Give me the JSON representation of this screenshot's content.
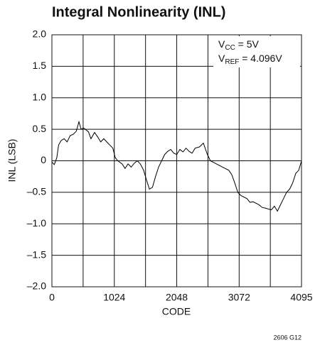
{
  "chart_data": {
    "type": "line",
    "title": "Integral Nonlinearity (INL)",
    "xlabel": "CODE",
    "ylabel": "INL (LSB)",
    "annotations": [
      {
        "parts": [
          "V",
          "CC",
          " = 5V"
        ]
      },
      {
        "parts": [
          "V",
          "REF",
          " = 4.096V"
        ]
      }
    ],
    "footnote": "2606 G12",
    "xlim": [
      0,
      4095
    ],
    "xticks": [
      0,
      1024,
      2048,
      3072,
      4095
    ],
    "ylim": [
      -2,
      2
    ],
    "yticks": [
      {
        "value": -2,
        "label": "–2.0"
      },
      {
        "value": -1.5,
        "label": "–1.5"
      },
      {
        "value": -1,
        "label": "–1.0"
      },
      {
        "value": -0.5,
        "label": "–0.5"
      },
      0,
      0.5,
      {
        "value": 1,
        "label": "1.0"
      },
      1.5,
      {
        "value": 2,
        "label": "2.0"
      }
    ],
    "grid": true,
    "series": [
      {
        "color": "#000000",
        "x": [
          0,
          40,
          80,
          110,
          150,
          200,
          250,
          300,
          350,
          400,
          443,
          480,
          520,
          600,
          640,
          700,
          750,
          800,
          850,
          900,
          950,
          1000,
          1040,
          1080,
          1150,
          1200,
          1250,
          1300,
          1350,
          1400,
          1450,
          1505,
          1550,
          1600,
          1650,
          1700,
          1750,
          1800,
          1850,
          1900,
          1950,
          2000,
          2048,
          2100,
          2150,
          2200,
          2250,
          2300,
          2350,
          2420,
          2485,
          2550,
          2600,
          2700,
          2800,
          2900,
          2950,
          3000,
          3050,
          3100,
          3200,
          3250,
          3300,
          3400,
          3450,
          3500,
          3600,
          3650,
          3700,
          3750,
          3800,
          3850,
          3900,
          3950,
          4000,
          4050,
          4095
        ],
        "values": [
          -0.02,
          -0.06,
          0.05,
          0.25,
          0.32,
          0.35,
          0.3,
          0.4,
          0.42,
          0.47,
          0.62,
          0.5,
          0.52,
          0.46,
          0.35,
          0.45,
          0.38,
          0.3,
          0.35,
          0.3,
          0.25,
          0.2,
          0.05,
          0.0,
          -0.05,
          -0.12,
          -0.05,
          -0.1,
          -0.04,
          0.0,
          -0.05,
          -0.15,
          -0.3,
          -0.45,
          -0.42,
          -0.25,
          -0.1,
          0.0,
          0.1,
          0.15,
          0.18,
          0.12,
          0.1,
          0.18,
          0.14,
          0.2,
          0.15,
          0.12,
          0.2,
          0.22,
          0.28,
          0.1,
          0.0,
          -0.05,
          -0.1,
          -0.15,
          -0.22,
          -0.35,
          -0.5,
          -0.55,
          -0.6,
          -0.66,
          -0.65,
          -0.7,
          -0.74,
          -0.75,
          -0.78,
          -0.72,
          -0.8,
          -0.7,
          -0.6,
          -0.5,
          -0.45,
          -0.35,
          -0.2,
          -0.15,
          0.0
        ]
      }
    ]
  }
}
